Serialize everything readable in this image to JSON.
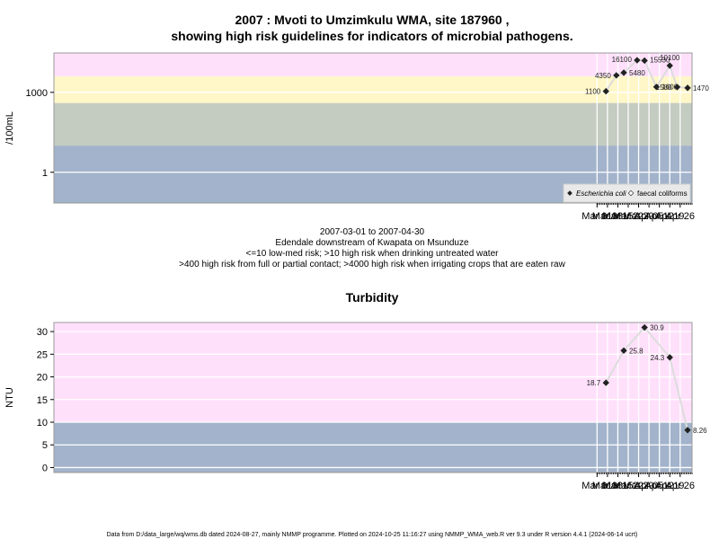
{
  "top_title_line1": "2007 : Mvoti to Umzimkulu WMA, site 187960 ,",
  "top_title_line2": "showing high risk guidelines for indicators of microbial pathogens.",
  "subtitle_lines": [
    "2007-03-01 to 2007-04-30",
    "Edendale downstream of Kwapata on Msunduze",
    "<=10 low-med risk; >10 high risk when drinking untreated water",
    ">400 high risk from full or partial contact; >4000 high risk when irrigating crops that are eaten raw"
  ],
  "footer": "Data from D:/data_large/wq/wms.db dated 2024-08-27, mainly NMMP programme. Plotted on 2024-10-25 11:16:27 using NMMP_WMA_web.R ver 9.3 under R version 4.4.1 (2024-06-14 ucrt)",
  "colors": {
    "pink": "#ffe0fb",
    "yellow": "#fff7c8",
    "gray": "#c4cbc1",
    "blue": "#a2b3cb",
    "line": "#dcdcdc",
    "point": "#222222"
  },
  "chart_data": [
    {
      "type": "line",
      "ylabel": "/100mL",
      "yscale": "log10",
      "ytick_labels": [
        "1",
        "1000"
      ],
      "ytick_values": [
        1,
        1000
      ],
      "x_tick_labels": [
        "Mar 01",
        "Mar 08",
        "Mar 15",
        "Mar 22",
        "Mar 29",
        "Apr 05",
        "Apr 12",
        "Apr 19",
        "Apr 26"
      ],
      "x_tick_dates": [
        "2007-03-01",
        "2007-03-08",
        "2007-03-15",
        "2007-03-22",
        "2007-03-29",
        "2007-04-05",
        "2007-04-12",
        "2007-04-19",
        "2007-04-26"
      ],
      "xlim": [
        "2006-02-28",
        "2007-05-04"
      ],
      "ylim": [
        0.07,
        30000
      ],
      "bands": [
        {
          "from": 0.07,
          "to": 10,
          "color": "blue"
        },
        {
          "from": 10,
          "to": 400,
          "color": "gray"
        },
        {
          "from": 400,
          "to": 4000,
          "color": "yellow"
        },
        {
          "from": 4000,
          "to": 30000,
          "color": "pink"
        }
      ],
      "series": [
        {
          "name": "Escherichia coli",
          "x": [
            "2007-03-07",
            "2007-03-14",
            "2007-03-19",
            "2007-03-28",
            "2007-04-02",
            "2007-04-10",
            "2007-04-19",
            "2007-04-24",
            "2007-05-01"
          ],
          "y": [
            1100,
            4350,
            5480,
            16100,
            15530,
            1600,
            10100,
            1580,
            1470
          ],
          "labels": [
            "1100",
            "4350",
            "5480",
            "16100",
            "15530",
            "1600",
            "10100",
            "1580",
            "1470"
          ]
        }
      ],
      "legend": {
        "position": "bottom-right",
        "entries": [
          "Escherichia coli",
          "faecal coliforms"
        ]
      }
    },
    {
      "type": "line",
      "title": "Turbidity",
      "ylabel": "NTU",
      "ytick_labels": [
        "0",
        "5",
        "10",
        "15",
        "20",
        "25",
        "30"
      ],
      "ytick_values": [
        0,
        5,
        10,
        15,
        20,
        25,
        30
      ],
      "x_tick_labels": [
        "Mar 01",
        "Mar 08",
        "Mar 15",
        "Mar 22",
        "Mar 29",
        "Apr 05",
        "Apr 12",
        "Apr 19",
        "Apr 26"
      ],
      "x_tick_dates": [
        "2007-03-01",
        "2007-03-08",
        "2007-03-15",
        "2007-03-22",
        "2007-03-29",
        "2007-04-05",
        "2007-04-12",
        "2007-04-19",
        "2007-04-26"
      ],
      "xlim": [
        "2006-02-28",
        "2007-05-04"
      ],
      "ylim": [
        -1.1,
        32
      ],
      "bands": [
        {
          "from": -1.1,
          "to": 10,
          "color": "blue"
        },
        {
          "from": 10,
          "to": 32,
          "color": "pink"
        }
      ],
      "series": [
        {
          "name": "",
          "x": [
            "2007-03-07",
            "2007-03-19",
            "2007-04-02",
            "2007-04-19",
            "2007-05-01"
          ],
          "y": [
            18.7,
            25.8,
            30.9,
            24.3,
            8.26
          ],
          "labels": [
            "18.7",
            "25.8",
            "30.9",
            "24.3",
            "8.26"
          ]
        }
      ]
    }
  ]
}
